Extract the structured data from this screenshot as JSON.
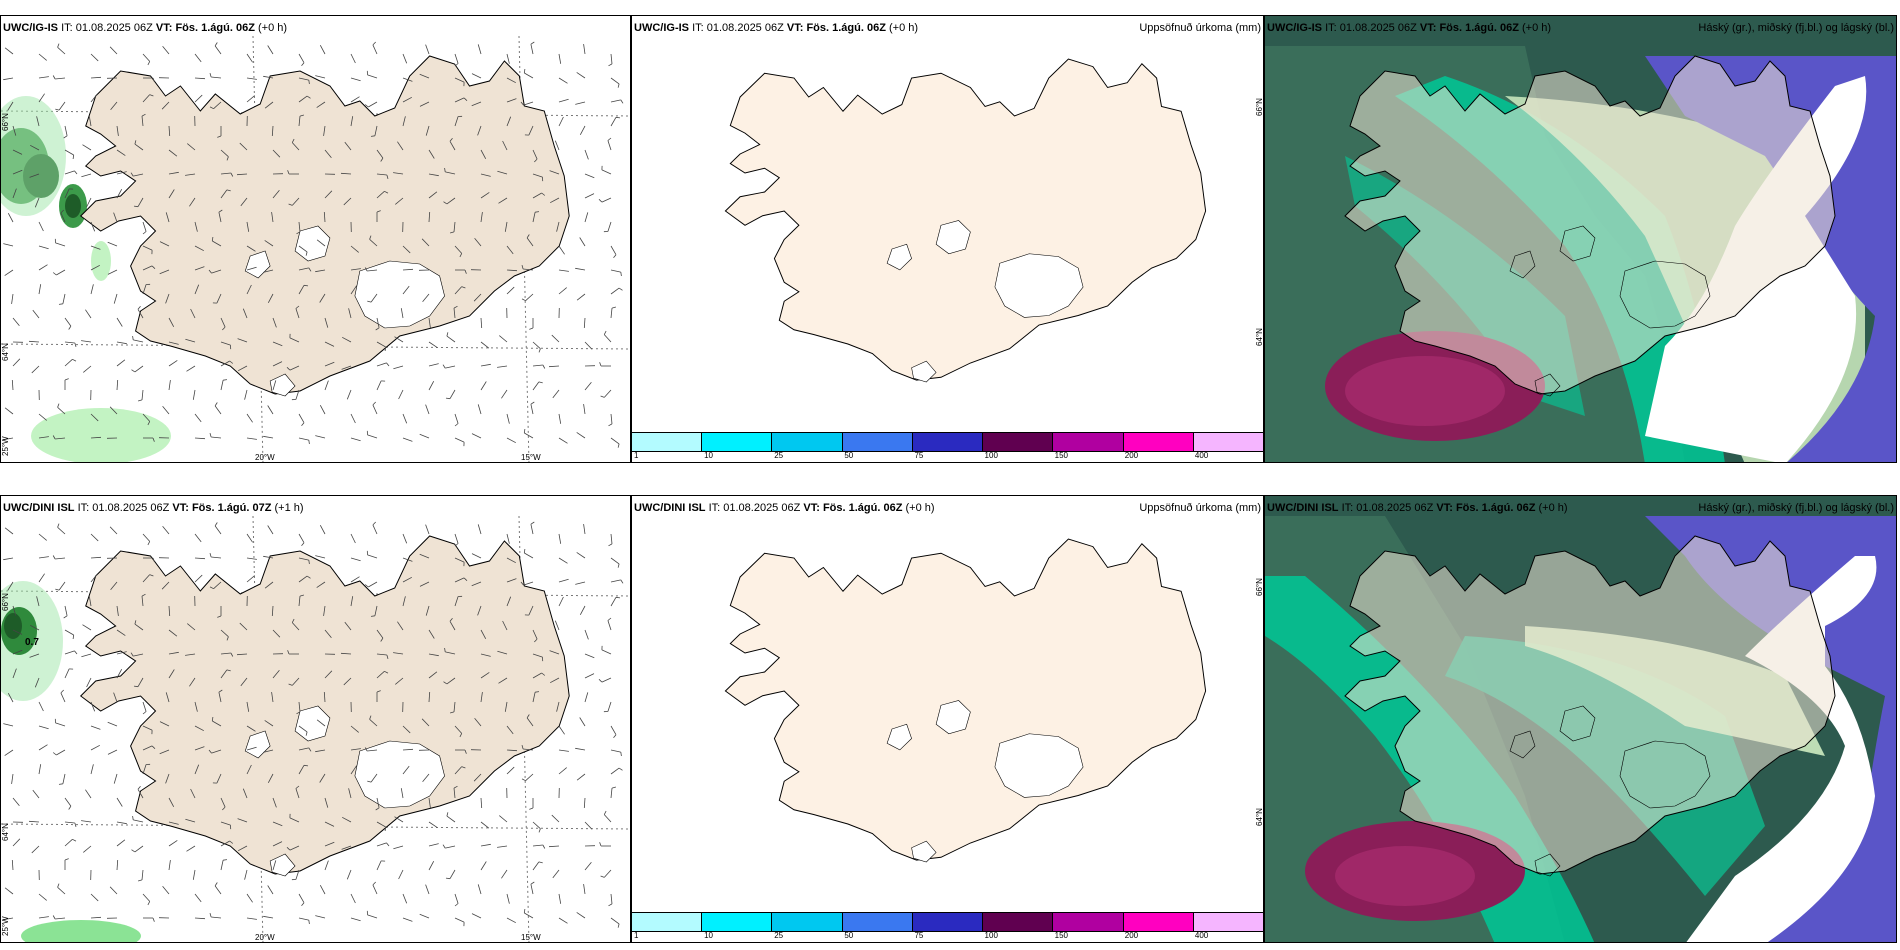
{
  "panels": {
    "wind_top": {
      "model": "UWC/IG-IS",
      "it_label": "IT:",
      "it": "01.08.2025 06Z",
      "vt_label": "VT:",
      "vt": "Fös. 1.ágú. 06Z",
      "lead": "(+0 h)"
    },
    "precip_top": {
      "model": "UWC/IG-IS",
      "it_label": "IT:",
      "it": "01.08.2025 06Z",
      "vt_label": "VT:",
      "vt": "Fös. 1.ágú. 06Z",
      "lead": "(+0 h)",
      "title": "Uppsöfnuð úrkoma (mm)"
    },
    "cloud_top": {
      "model": "UWC/IG-IS",
      "it_label": "IT:",
      "it": "01.08.2025 06Z",
      "vt_label": "VT:",
      "vt": "Fös. 1.ágú. 06Z",
      "lead": "(+0 h)",
      "title": "Háský (gr.), miðský (fj.bl.) og lágský (bl.)"
    },
    "wind_bottom": {
      "model": "UWC/DINI ISL",
      "it_label": "IT:",
      "it": "01.08.2025 06Z",
      "vt_label": "VT:",
      "vt": "Fös. 1.ágú. 07Z",
      "lead": "(+1 h)"
    },
    "precip_bottom": {
      "model": "UWC/DINI ISL",
      "it_label": "IT:",
      "it": "01.08.2025 06Z",
      "vt_label": "VT:",
      "vt": "Fös. 1.ágú. 06Z",
      "lead": "(+0 h)",
      "title": "Uppsöfnuð úrkoma (mm)"
    },
    "cloud_bottom": {
      "model": "UWC/DINI ISL",
      "it_label": "IT:",
      "it": "01.08.2025 06Z",
      "vt_label": "VT:",
      "vt": "Fös. 1.ágú. 06Z",
      "lead": "(+0 h)",
      "title": "Háský (gr.), miðský (fj.bl.) og lágský (bl.)"
    }
  },
  "grid_labels": {
    "lat_66": "66°N",
    "lat_64": "64°N",
    "lon_25": "25°W",
    "lon_20": "20°W",
    "lon_15": "15°W"
  },
  "wind_values": {
    "bottom_peak": "0.7"
  },
  "colorbar": {
    "labels": [
      "1",
      "10",
      "25",
      "50",
      "75",
      "100",
      "150",
      "200",
      "400"
    ],
    "colors": [
      "#b3fbff",
      "#00f0ff",
      "#00c8f0",
      "#3a78f0",
      "#2a2ac0",
      "#600050",
      "#b000a0",
      "#ff00c0",
      "#f5b5ff"
    ]
  },
  "colors": {
    "land": "#efe3d4",
    "land_precip": "#fdf1e4",
    "ocean_cloud": "#2d5a4e",
    "mid_cloud": "#00c896",
    "high_cloud": "#5a55c8",
    "low_cloud": "#8a1e58"
  }
}
